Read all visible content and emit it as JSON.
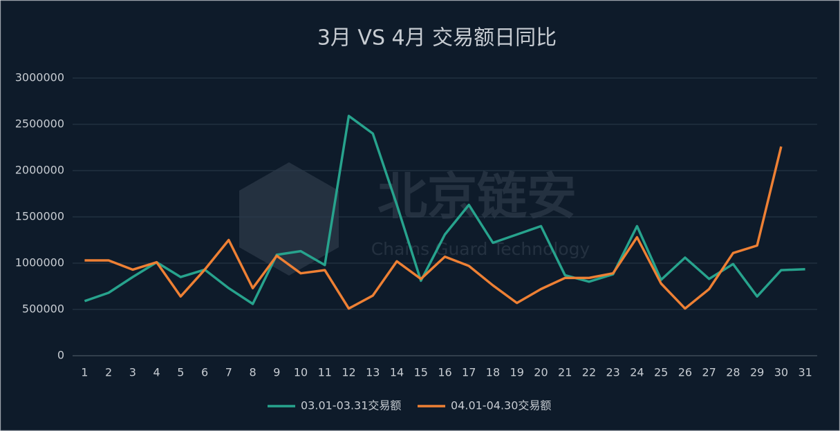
{
  "chart_data": {
    "type": "line",
    "title": "3月 VS  4月 交易额日同比",
    "watermark": {
      "title": "北京链安",
      "subtitle": "Chains Guard Technology"
    },
    "categories": [
      "1",
      "2",
      "3",
      "4",
      "5",
      "6",
      "7",
      "8",
      "9",
      "10",
      "11",
      "12",
      "13",
      "14",
      "15",
      "16",
      "17",
      "18",
      "19",
      "20",
      "21",
      "22",
      "23",
      "24",
      "25",
      "26",
      "27",
      "28",
      "29",
      "30",
      "31"
    ],
    "series": [
      {
        "name": "03.01-03.31交易额",
        "color": "#27a38d",
        "values": [
          590000,
          680000,
          850000,
          1010000,
          850000,
          930000,
          730000,
          560000,
          1090000,
          1130000,
          980000,
          2590000,
          2400000,
          1630000,
          810000,
          1310000,
          1630000,
          1220000,
          1310000,
          1400000,
          870000,
          800000,
          880000,
          1400000,
          820000,
          1060000,
          830000,
          990000,
          640000,
          925000,
          935000
        ]
      },
      {
        "name": "04.01-04.30交易额",
        "color": "#ee8034",
        "values": [
          1030000,
          1030000,
          930000,
          1010000,
          640000,
          930000,
          1250000,
          730000,
          1080000,
          890000,
          925000,
          510000,
          650000,
          1020000,
          830000,
          1070000,
          970000,
          760000,
          570000,
          720000,
          840000,
          840000,
          890000,
          1280000,
          780000,
          510000,
          720000,
          1110000,
          1190000,
          2260000,
          null
        ]
      }
    ],
    "ylim": [
      0,
      3000000
    ],
    "yticks": [
      0,
      500000,
      1000000,
      1500000,
      2000000,
      2500000,
      3000000
    ],
    "grid": true,
    "legend": "bottom"
  }
}
